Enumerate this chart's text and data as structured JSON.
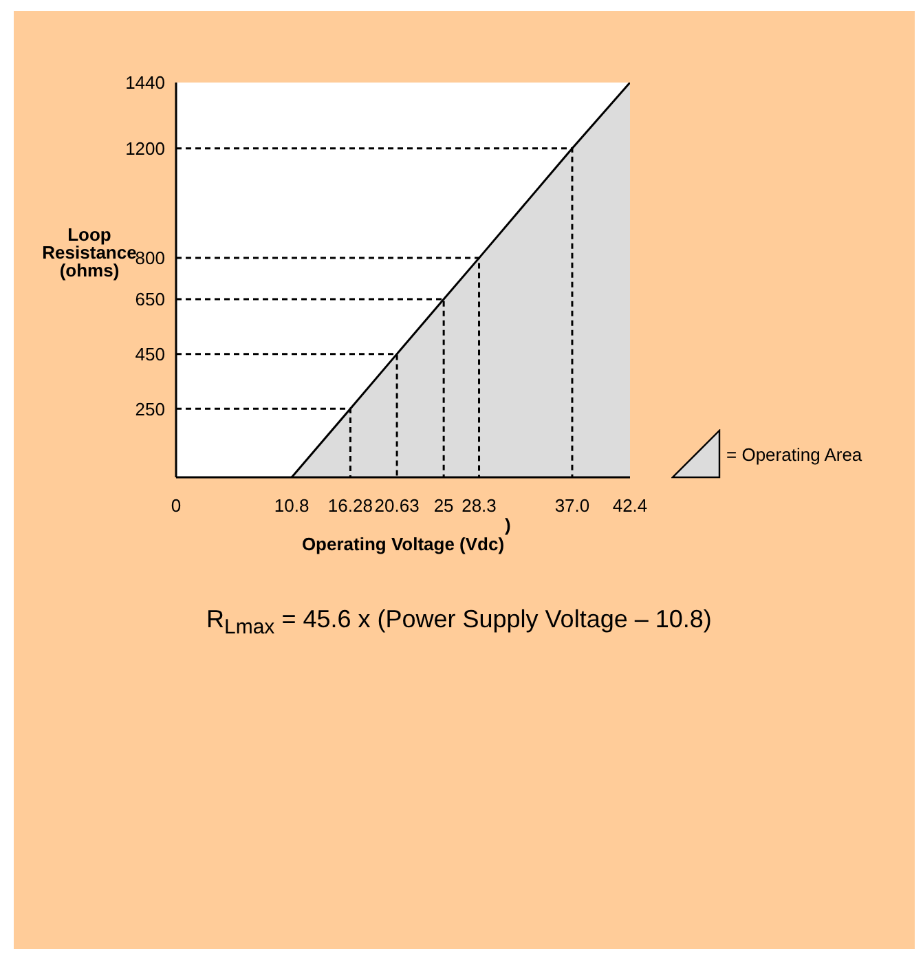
{
  "chart_data": {
    "type": "area",
    "xlabel": "Operating Voltage (Vdc)",
    "ylabel": "Loop Resistance (ohms)",
    "x": [
      10.8,
      16.28,
      20.63,
      25,
      28.3,
      37.0,
      42.4
    ],
    "series": [
      {
        "name": "= Operating Area",
        "color": "#dcdcdc",
        "values": [
          0,
          250,
          450,
          650,
          800,
          1200,
          1440
        ]
      },
      {
        "type": "line",
        "line_style": "dashed",
        "color": "#000000",
        "x": [
          0,
          16.28,
          16.28,
          null,
          0,
          20.63,
          20.63,
          null,
          0,
          25,
          25,
          null,
          0,
          28.3,
          28.3,
          null,
          0,
          37.0,
          37.0
        ],
        "values": [
          250,
          250,
          0,
          null,
          450,
          450,
          0,
          null,
          650,
          650,
          0,
          null,
          800,
          800,
          0,
          null,
          1200,
          1200,
          0
        ]
      }
    ],
    "xlim": [
      0,
      42.4
    ],
    "xticks": [
      0,
      10.8,
      16.28,
      20.63,
      25,
      28.3,
      {
        "value": 37.0,
        "label": "37.0"
      },
      42.4
    ],
    "ylim": [
      0,
      1440
    ],
    "yticks": [
      250,
      450,
      650,
      800,
      1200,
      1440
    ],
    "annotations": [
      ")",
      "R$_{Lmax}$ = 45.6 x (Power Supply Voltage – 10.8)"
    ],
    "legend": "right",
    "grid": false
  }
}
